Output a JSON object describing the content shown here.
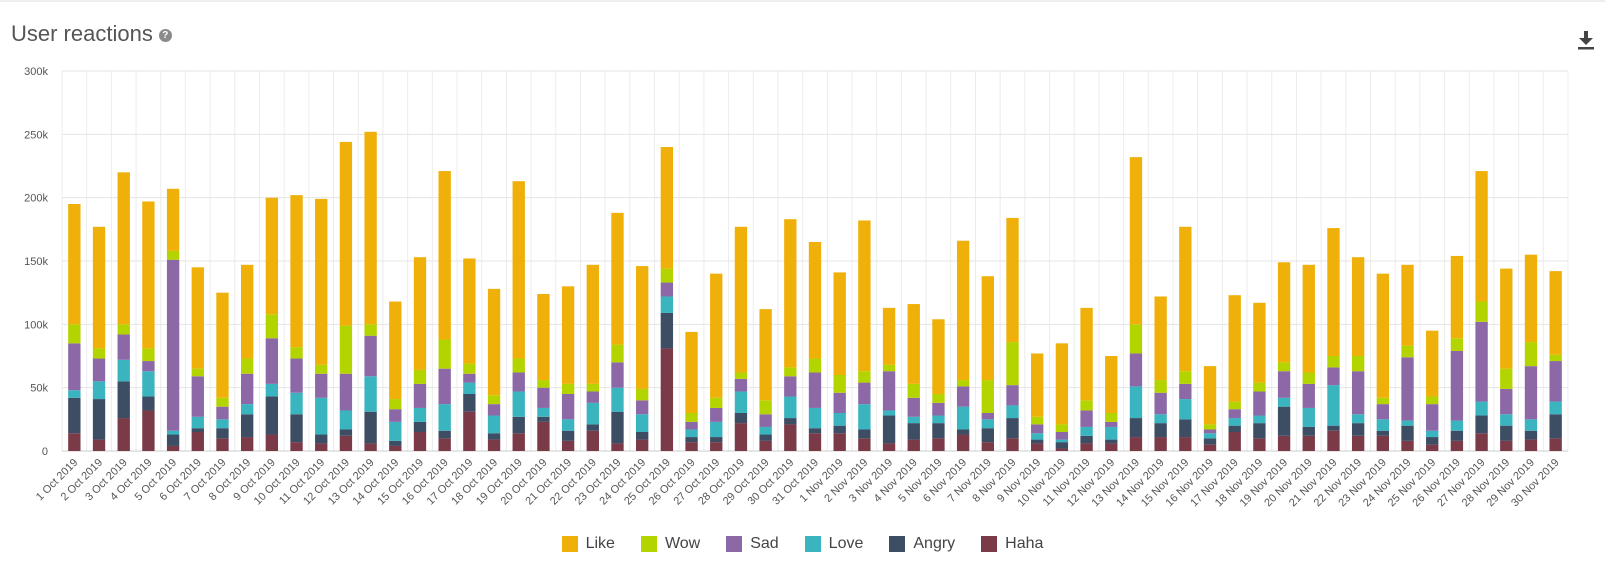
{
  "header": {
    "title": "User reactions",
    "help_icon": "question-circle-icon",
    "download_icon": "download-icon"
  },
  "chart_data": {
    "type": "bar",
    "stacked": true,
    "title": "User reactions",
    "xlabel": "",
    "ylabel": "",
    "ylim": [
      0,
      300000
    ],
    "y_ticks": [
      0,
      50000,
      100000,
      150000,
      200000,
      250000,
      300000
    ],
    "y_tick_labels": [
      "0",
      "50k",
      "100k",
      "150k",
      "200k",
      "250k",
      "300k"
    ],
    "grid": true,
    "legend_position": "bottom-center",
    "categories": [
      "1 Oct 2019",
      "2 Oct 2019",
      "3 Oct 2019",
      "4 Oct 2019",
      "5 Oct 2019",
      "6 Oct 2019",
      "7 Oct 2019",
      "8 Oct 2019",
      "9 Oct 2019",
      "10 Oct 2019",
      "11 Oct 2019",
      "12 Oct 2019",
      "13 Oct 2019",
      "14 Oct 2019",
      "15 Oct 2019",
      "16 Oct 2019",
      "17 Oct 2019",
      "18 Oct 2019",
      "19 Oct 2019",
      "20 Oct 2019",
      "21 Oct 2019",
      "22 Oct 2019",
      "23 Oct 2019",
      "24 Oct 2019",
      "25 Oct 2019",
      "26 Oct 2019",
      "27 Oct 2019",
      "28 Oct 2019",
      "29 Oct 2019",
      "30 Oct 2019",
      "31 Oct 2019",
      "1 Nov 2019",
      "2 Nov 2019",
      "3 Nov 2019",
      "4 Nov 2019",
      "5 Nov 2019",
      "6 Nov 2019",
      "7 Nov 2019",
      "8 Nov 2019",
      "9 Nov 2019",
      "10 Nov 2019",
      "11 Nov 2019",
      "12 Nov 2019",
      "13 Nov 2019",
      "14 Nov 2019",
      "15 Nov 2019",
      "16 Nov 2019",
      "17 Nov 2019",
      "18 Nov 2019",
      "19 Nov 2019",
      "20 Nov 2019",
      "21 Nov 2019",
      "22 Nov 2019",
      "23 Nov 2019",
      "24 Nov 2019",
      "25 Nov 2019",
      "26 Nov 2019",
      "27 Nov 2019",
      "28 Nov 2019",
      "29 Nov 2019",
      "30 Nov 2019"
    ],
    "series": [
      {
        "name": "Haha",
        "color": "#7a3a48",
        "values": [
          14000,
          9000,
          26000,
          32000,
          4000,
          15000,
          10000,
          11000,
          13000,
          7000,
          6000,
          12000,
          6000,
          4000,
          15000,
          10000,
          31000,
          9000,
          14000,
          23000,
          8000,
          16000,
          6000,
          9000,
          81000,
          7000,
          7000,
          22000,
          8000,
          21000,
          14000,
          14000,
          10000,
          6000,
          9000,
          10000,
          13000,
          7000,
          10000,
          6000,
          2000,
          6000,
          6000,
          11000,
          11000,
          11000,
          5000,
          15000,
          10000,
          12000,
          12000,
          16000,
          12000,
          12000,
          8000,
          5000,
          8000,
          14000,
          8000,
          9000,
          10000
        ]
      },
      {
        "name": "Angry",
        "color": "#3d4d63",
        "values": [
          28000,
          32000,
          29000,
          11000,
          9000,
          3000,
          8000,
          18000,
          30000,
          22000,
          7000,
          5000,
          25000,
          4000,
          8000,
          6000,
          14000,
          5000,
          13000,
          4000,
          8000,
          5000,
          25000,
          6000,
          28000,
          4000,
          4000,
          8000,
          5000,
          5000,
          4000,
          6000,
          7000,
          22000,
          13000,
          12000,
          4000,
          11000,
          16000,
          3000,
          5000,
          6000,
          3000,
          15000,
          11000,
          14000,
          5000,
          5000,
          12000,
          23000,
          7000,
          4000,
          10000,
          4000,
          12000,
          6000,
          8000,
          14000,
          12000,
          7000,
          19000
        ]
      },
      {
        "name": "Love",
        "color": "#3ab4bf",
        "values": [
          6000,
          14000,
          17000,
          20000,
          3000,
          9000,
          7000,
          8000,
          10000,
          17000,
          29000,
          15000,
          28000,
          15000,
          11000,
          21000,
          9000,
          14000,
          20000,
          7000,
          9000,
          17000,
          19000,
          14000,
          13000,
          6000,
          12000,
          17000,
          6000,
          17000,
          16000,
          10000,
          20000,
          4000,
          5000,
          6000,
          18000,
          7000,
          10000,
          5000,
          2000,
          7000,
          10000,
          25000,
          7000,
          16000,
          4000,
          6000,
          6000,
          7000,
          15000,
          32000,
          7000,
          9000,
          4000,
          5000,
          8000,
          11000,
          9000,
          9000,
          10000
        ]
      },
      {
        "name": "Sad",
        "color": "#8c68a6",
        "values": [
          37000,
          18000,
          20000,
          8000,
          135000,
          32000,
          10000,
          24000,
          36000,
          27000,
          19000,
          29000,
          32000,
          10000,
          19000,
          28000,
          7000,
          9000,
          15000,
          16000,
          20000,
          9000,
          20000,
          11000,
          11000,
          6000,
          11000,
          10000,
          10000,
          16000,
          28000,
          16000,
          17000,
          31000,
          15000,
          10000,
          16000,
          5000,
          16000,
          7000,
          6000,
          13000,
          4000,
          26000,
          17000,
          12000,
          3000,
          7000,
          19000,
          21000,
          19000,
          14000,
          34000,
          12000,
          50000,
          21000,
          55000,
          63000,
          20000,
          42000,
          32000
        ]
      },
      {
        "name": "Wow",
        "color": "#b4d400",
        "values": [
          15000,
          8000,
          8000,
          10000,
          7000,
          6000,
          7000,
          12000,
          19000,
          9000,
          7000,
          38000,
          9000,
          8000,
          11000,
          23000,
          8000,
          7000,
          11000,
          6000,
          8000,
          6000,
          14000,
          9000,
          11000,
          7000,
          8000,
          5000,
          11000,
          7000,
          11000,
          14000,
          9000,
          5000,
          11000,
          7000,
          5000,
          26000,
          34000,
          6000,
          6000,
          8000,
          7000,
          23000,
          10000,
          10000,
          4000,
          6000,
          7000,
          7000,
          9000,
          9000,
          12000,
          5000,
          9000,
          6000,
          10000,
          16000,
          16000,
          19000,
          5000
        ]
      },
      {
        "name": "Like",
        "color": "#f0b00a",
        "values": [
          95000,
          96000,
          120000,
          116000,
          49000,
          80000,
          83000,
          74000,
          92000,
          120000,
          131000,
          145000,
          152000,
          77000,
          89000,
          133000,
          83000,
          84000,
          140000,
          68000,
          77000,
          94000,
          104000,
          97000,
          96000,
          64000,
          98000,
          115000,
          72000,
          117000,
          92000,
          81000,
          119000,
          45000,
          63000,
          59000,
          110000,
          82000,
          98000,
          50000,
          64000,
          73000,
          45000,
          132000,
          66000,
          114000,
          46000,
          84000,
          63000,
          79000,
          85000,
          101000,
          78000,
          98000,
          64000,
          52000,
          65000,
          103000,
          79000,
          69000,
          66000
        ]
      }
    ]
  },
  "legend": {
    "order": [
      "Like",
      "Wow",
      "Sad",
      "Love",
      "Angry",
      "Haha"
    ]
  }
}
